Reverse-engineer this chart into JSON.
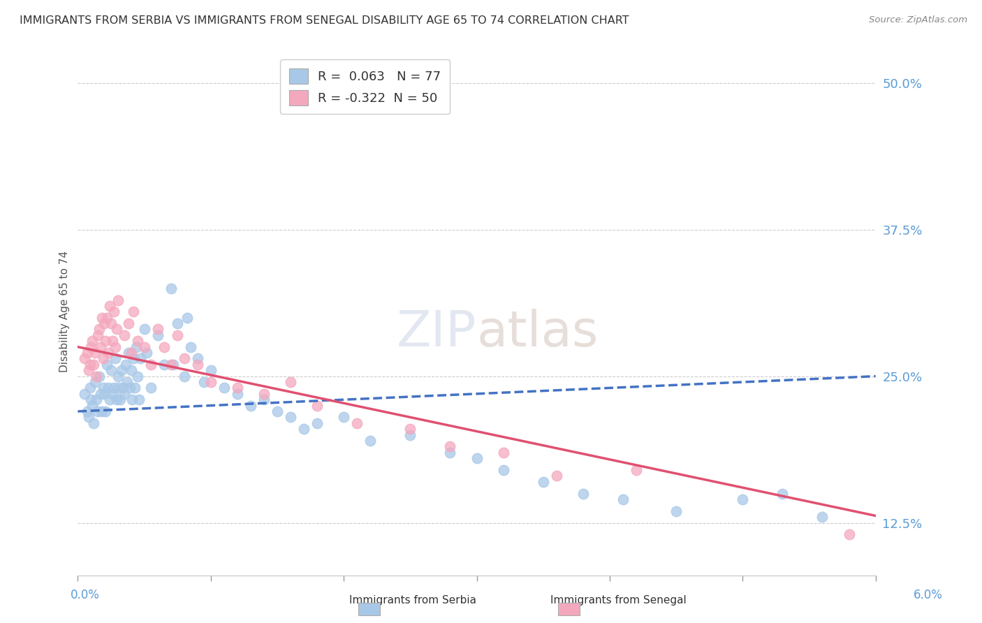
{
  "title": "IMMIGRANTS FROM SERBIA VS IMMIGRANTS FROM SENEGAL DISABILITY AGE 65 TO 74 CORRELATION CHART",
  "source": "Source: ZipAtlas.com",
  "ylabel": "Disability Age 65 to 74",
  "xlim": [
    0.0,
    6.0
  ],
  "ylim": [
    8.0,
    53.0
  ],
  "yticks": [
    12.5,
    25.0,
    37.5,
    50.0
  ],
  "ytick_labels": [
    "12.5%",
    "25.0%",
    "37.5%",
    "50.0%"
  ],
  "serbia_color": "#a8c8e8",
  "senegal_color": "#f4a8be",
  "serbia_line_color": "#4472c4",
  "senegal_line_color": "#e05070",
  "serbia_R": 0.063,
  "serbia_N": 77,
  "senegal_R": -0.322,
  "senegal_N": 50,
  "serbia_scatter_x": [
    0.05,
    0.07,
    0.08,
    0.09,
    0.1,
    0.11,
    0.12,
    0.13,
    0.14,
    0.15,
    0.16,
    0.17,
    0.18,
    0.19,
    0.2,
    0.21,
    0.22,
    0.23,
    0.24,
    0.25,
    0.26,
    0.27,
    0.28,
    0.29,
    0.3,
    0.31,
    0.32,
    0.33,
    0.34,
    0.35,
    0.36,
    0.37,
    0.38,
    0.39,
    0.4,
    0.41,
    0.42,
    0.43,
    0.44,
    0.45,
    0.46,
    0.47,
    0.5,
    0.52,
    0.55,
    0.6,
    0.65,
    0.7,
    0.72,
    0.75,
    0.8,
    0.82,
    0.85,
    0.9,
    0.95,
    1.0,
    1.1,
    1.2,
    1.3,
    1.4,
    1.5,
    1.6,
    1.7,
    1.8,
    2.0,
    2.2,
    2.5,
    2.8,
    3.0,
    3.2,
    3.5,
    3.8,
    4.1,
    4.5,
    5.0,
    5.3,
    5.6
  ],
  "serbia_scatter_y": [
    23.5,
    22.0,
    21.5,
    24.0,
    23.0,
    22.5,
    21.0,
    24.5,
    23.0,
    22.0,
    25.0,
    23.5,
    22.0,
    24.0,
    23.5,
    22.0,
    26.0,
    24.0,
    23.0,
    25.5,
    23.5,
    24.0,
    26.5,
    23.0,
    25.0,
    24.0,
    23.0,
    25.5,
    24.0,
    23.5,
    26.0,
    24.5,
    27.0,
    24.0,
    25.5,
    23.0,
    26.5,
    24.0,
    27.5,
    25.0,
    23.0,
    26.5,
    29.0,
    27.0,
    24.0,
    28.5,
    26.0,
    32.5,
    26.0,
    29.5,
    25.0,
    30.0,
    27.5,
    26.5,
    24.5,
    25.5,
    24.0,
    23.5,
    22.5,
    23.0,
    22.0,
    21.5,
    20.5,
    21.0,
    21.5,
    19.5,
    20.0,
    18.5,
    18.0,
    17.0,
    16.0,
    15.0,
    14.5,
    13.5,
    14.5,
    15.0,
    13.0
  ],
  "senegal_scatter_x": [
    0.05,
    0.07,
    0.08,
    0.09,
    0.1,
    0.11,
    0.12,
    0.13,
    0.14,
    0.15,
    0.16,
    0.17,
    0.18,
    0.19,
    0.2,
    0.21,
    0.22,
    0.23,
    0.24,
    0.25,
    0.26,
    0.27,
    0.28,
    0.29,
    0.3,
    0.35,
    0.38,
    0.4,
    0.42,
    0.45,
    0.5,
    0.55,
    0.6,
    0.65,
    0.7,
    0.75,
    0.8,
    0.9,
    1.0,
    1.2,
    1.4,
    1.6,
    1.8,
    2.1,
    2.5,
    2.8,
    3.2,
    3.6,
    4.2,
    5.8
  ],
  "senegal_scatter_y": [
    26.5,
    27.0,
    25.5,
    26.0,
    27.5,
    28.0,
    26.0,
    27.0,
    25.0,
    28.5,
    29.0,
    27.5,
    30.0,
    26.5,
    29.5,
    28.0,
    30.0,
    27.0,
    31.0,
    29.5,
    28.0,
    30.5,
    27.5,
    29.0,
    31.5,
    28.5,
    29.5,
    27.0,
    30.5,
    28.0,
    27.5,
    26.0,
    29.0,
    27.5,
    26.0,
    28.5,
    26.5,
    26.0,
    24.5,
    24.0,
    23.5,
    24.5,
    22.5,
    21.0,
    20.5,
    19.0,
    18.5,
    16.5,
    17.0,
    11.5
  ]
}
